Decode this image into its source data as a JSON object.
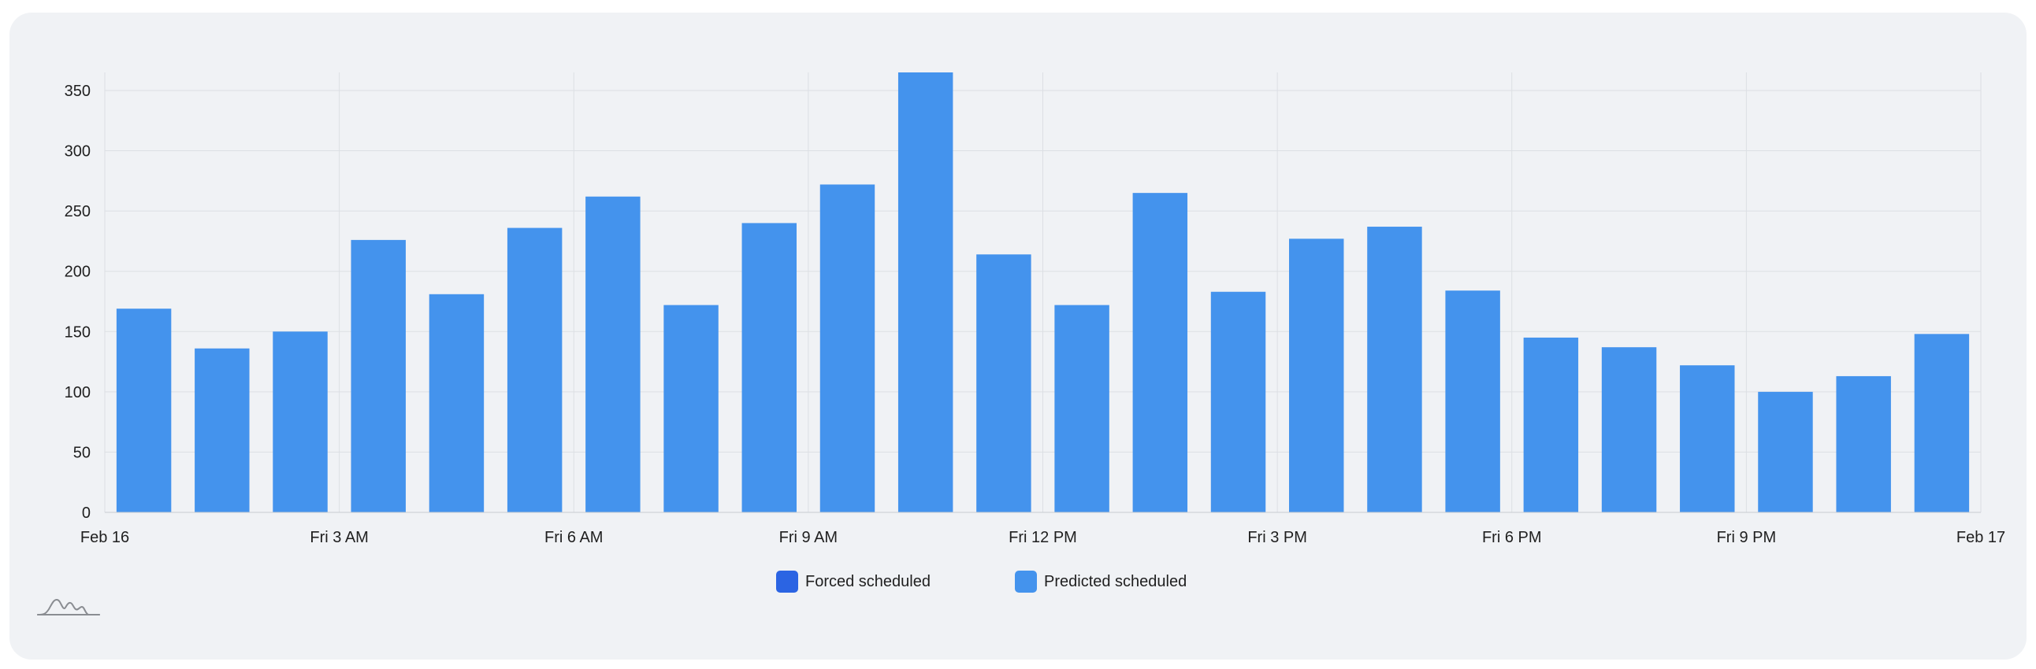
{
  "colors": {
    "forced": "#2b64e3",
    "predicted": "#4493ed",
    "grid": "#dcdfe4",
    "background": "#f0f2f5"
  },
  "legend": {
    "forced_label": "Forced scheduled",
    "predicted_label": "Predicted scheduled"
  },
  "icons": {
    "logo": "waveform-logo-icon"
  },
  "chart_data": {
    "type": "bar",
    "x_tick_labels": [
      "Feb 16",
      "Fri 3 AM",
      "Fri 6 AM",
      "Fri 9 AM",
      "Fri 12 PM",
      "Fri 3 PM",
      "Fri 6 PM",
      "Fri 9 PM",
      "Feb 17"
    ],
    "x_unit": "hour",
    "x_range_hours": [
      0,
      24
    ],
    "y_ticks": [
      0,
      50,
      100,
      150,
      200,
      250,
      300,
      350
    ],
    "ylim": [
      0,
      365
    ],
    "grid": true,
    "legend_position": "bottom",
    "series": [
      {
        "name": "Forced scheduled",
        "values": [
          0,
          0,
          0,
          0,
          0,
          0,
          0,
          0,
          0,
          0,
          0,
          0,
          0,
          0,
          0,
          0,
          0,
          0,
          0,
          0,
          0,
          0,
          0,
          0
        ]
      },
      {
        "name": "Predicted scheduled",
        "values": [
          169,
          136,
          150,
          226,
          181,
          236,
          262,
          172,
          240,
          272,
          365,
          214,
          172,
          265,
          183,
          227,
          237,
          184,
          145,
          137,
          122,
          100,
          113,
          148
        ]
      }
    ]
  }
}
